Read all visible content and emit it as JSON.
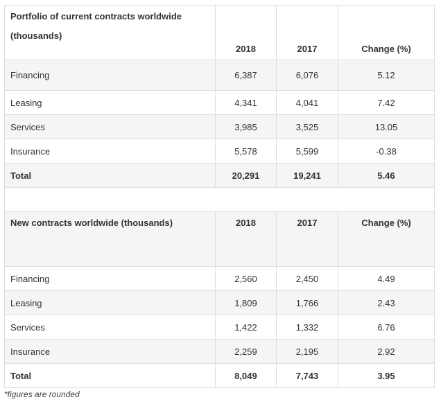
{
  "tables": [
    {
      "header": [
        "Portfolio of current contracts worldwide (thousands)",
        "2018",
        "2017",
        "Change (%)"
      ],
      "rows": [
        [
          "Financing",
          "6,387",
          "6,076",
          "5.12"
        ],
        [
          "Leasing",
          "4,341",
          "4,041",
          "7.42"
        ],
        [
          "Services",
          "3,985",
          "3,525",
          "13.05"
        ],
        [
          "Insurance",
          "5,578",
          "5,599",
          "-0.38"
        ],
        [
          "Total",
          "20,291",
          "19,241",
          "5.46"
        ]
      ]
    },
    {
      "header": [
        "New contracts worldwide (thousands)",
        "2018",
        "2017",
        "Change (%)"
      ],
      "rows": [
        [
          "Financing",
          "2,560",
          "2,450",
          "4.49"
        ],
        [
          "Leasing",
          "1,809",
          "1,766",
          "2.43"
        ],
        [
          "Services",
          "1,422",
          "1,332",
          "6.76"
        ],
        [
          "Insurance",
          "2,259",
          "2,195",
          "2.92"
        ],
        [
          "Total",
          "8,049",
          "7,743",
          "3.95"
        ]
      ]
    }
  ],
  "footnote": "*figures are rounded"
}
